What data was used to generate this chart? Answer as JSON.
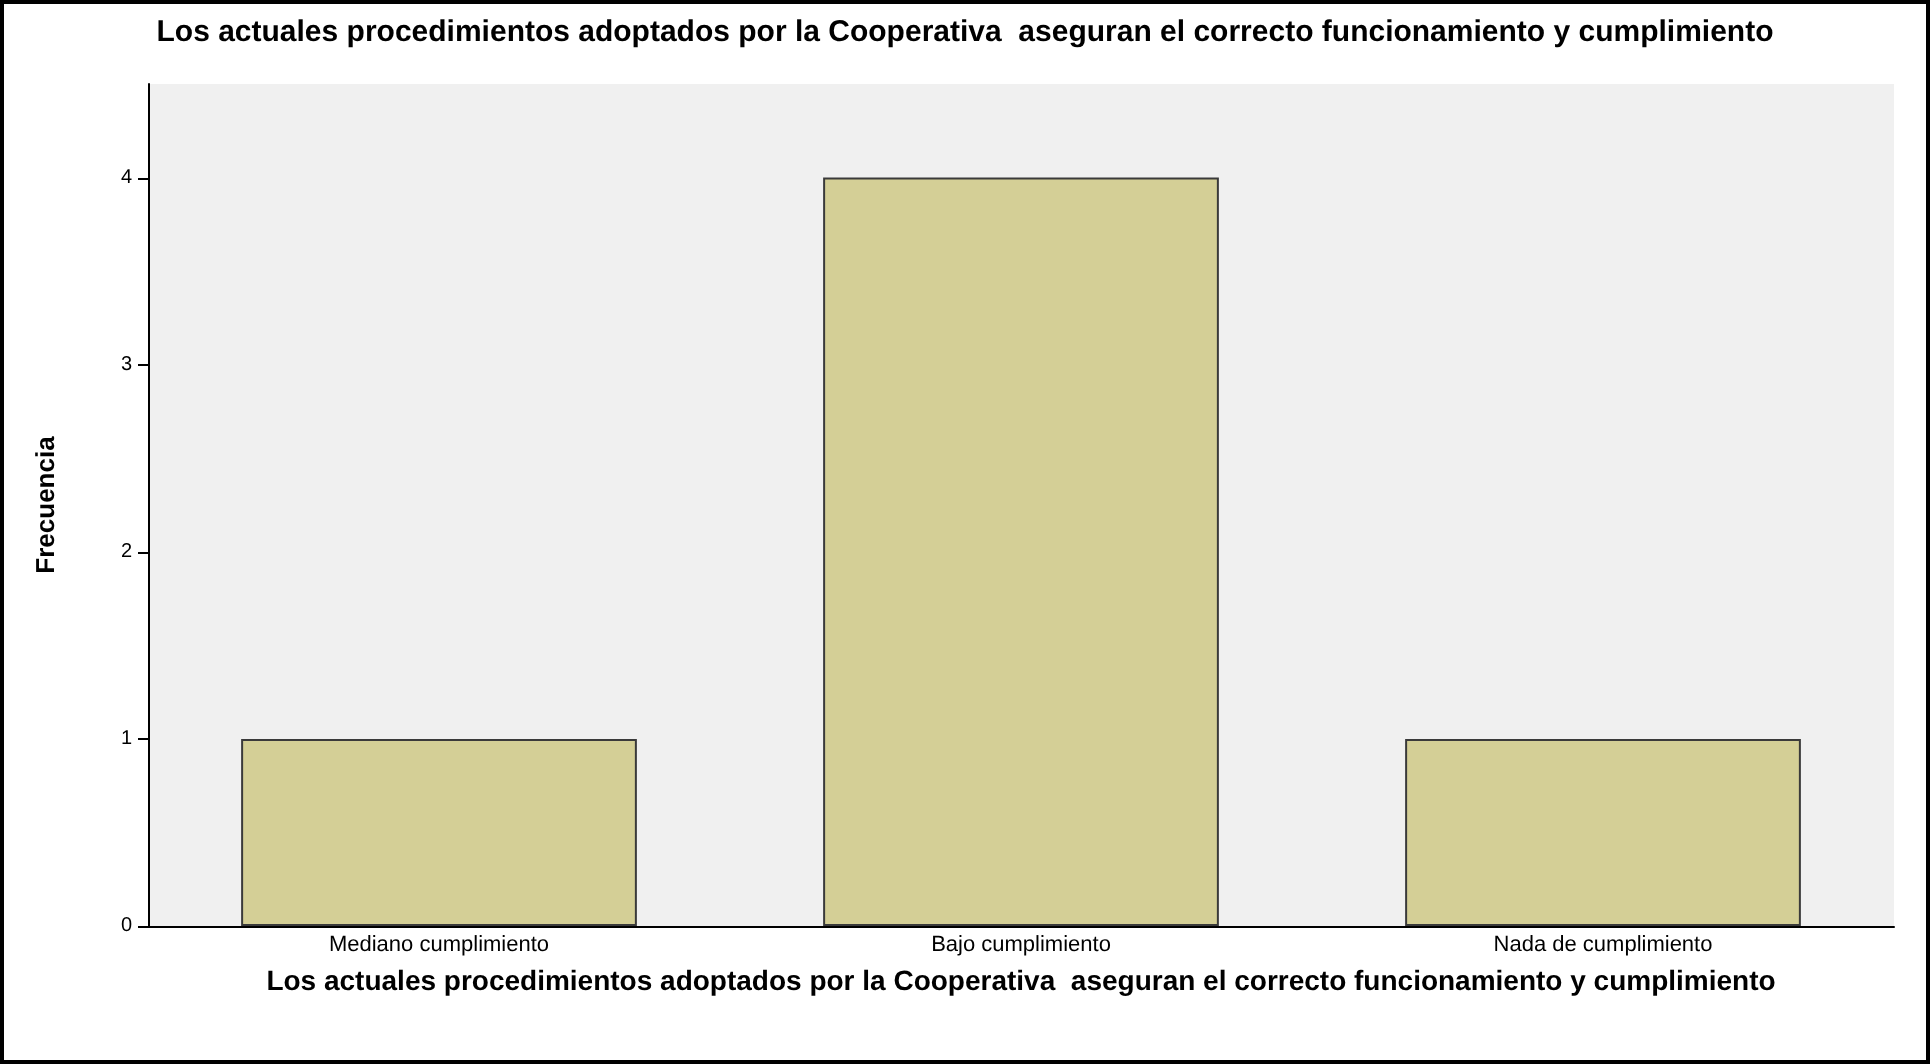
{
  "chart_data": {
    "type": "bar",
    "title": "Los actuales procedimientos adoptados por la Cooperativa  aseguran el correcto funcionamiento y cumplimiento",
    "xlabel": "Los actuales procedimientos adoptados por la Cooperativa  aseguran el correcto funcionamiento y cumplimiento",
    "ylabel": "Frecuencia",
    "categories": [
      "Mediano cumplimiento",
      "Bajo cumplimiento",
      "Nada de cumplimiento"
    ],
    "values": [
      1,
      4,
      1
    ],
    "color": "#d4cf96",
    "ylim": [
      0,
      4.5
    ],
    "yticks": [
      0,
      1,
      2,
      3,
      4
    ],
    "grid": false
  }
}
